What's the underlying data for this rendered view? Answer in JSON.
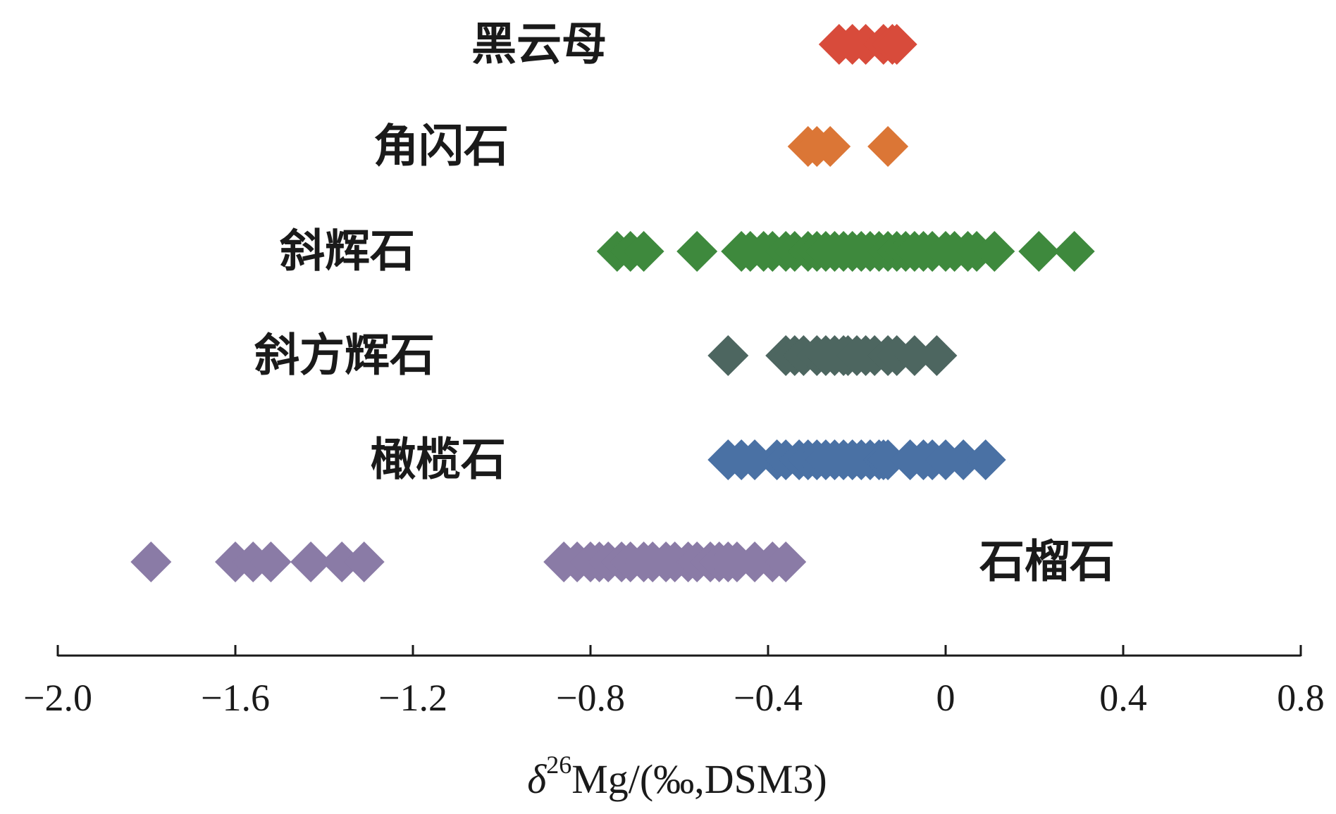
{
  "chart_data": {
    "type": "scatter",
    "marker": "diamond",
    "xlabel": {
      "symbol": "δ",
      "superscript": "26",
      "text": "Mg/(‰,DSM3)"
    },
    "ylabel": "",
    "xlim": [
      -2.0,
      0.8
    ],
    "grid": false,
    "legend": "none",
    "xticks": [
      {
        "value": -2.0,
        "label": "−2.0"
      },
      {
        "value": -1.6,
        "label": "−1.6"
      },
      {
        "value": -1.2,
        "label": "−1.2"
      },
      {
        "value": -0.8,
        "label": "−0.8"
      },
      {
        "value": -0.4,
        "label": "−0.4"
      },
      {
        "value": 0.0,
        "label": "0"
      },
      {
        "value": 0.4,
        "label": "0.4"
      },
      {
        "value": 0.8,
        "label": "0.8"
      }
    ],
    "series": [
      {
        "name": "黑云母",
        "color": "#d84b3b",
        "values": [
          -0.24,
          -0.21,
          -0.18,
          -0.14,
          -0.12,
          -0.11
        ]
      },
      {
        "name": "角闪石",
        "color": "#db7636",
        "values": [
          -0.31,
          -0.29,
          -0.26,
          -0.13
        ]
      },
      {
        "name": "斜辉石",
        "color": "#3e893d",
        "values": [
          -0.74,
          -0.71,
          -0.68,
          -0.56,
          -0.46,
          -0.44,
          -0.41,
          -0.39,
          -0.36,
          -0.34,
          -0.31,
          -0.29,
          -0.27,
          -0.25,
          -0.23,
          -0.21,
          -0.19,
          -0.17,
          -0.15,
          -0.13,
          -0.11,
          -0.09,
          -0.07,
          -0.05,
          -0.03,
          0.0,
          0.02,
          0.05,
          0.07,
          0.11,
          0.21,
          0.29
        ]
      },
      {
        "name": "斜方辉石",
        "color": "#4d6660",
        "values": [
          -0.49,
          -0.36,
          -0.34,
          -0.32,
          -0.29,
          -0.27,
          -0.25,
          -0.23,
          -0.22,
          -0.2,
          -0.18,
          -0.16,
          -0.13,
          -0.11,
          -0.07,
          -0.02
        ]
      },
      {
        "name": "橄榄石",
        "color": "#4a71a4",
        "values": [
          -0.49,
          -0.46,
          -0.43,
          -0.38,
          -0.36,
          -0.33,
          -0.31,
          -0.29,
          -0.27,
          -0.25,
          -0.23,
          -0.21,
          -0.19,
          -0.17,
          -0.15,
          -0.14,
          -0.13,
          -0.08,
          -0.05,
          -0.03,
          0.0,
          0.04,
          0.09
        ]
      },
      {
        "name": "石榴石",
        "color": "#8a7ba6",
        "values": [
          -1.79,
          -1.6,
          -1.56,
          -1.52,
          -1.43,
          -1.36,
          -1.31,
          -0.86,
          -0.83,
          -0.8,
          -0.78,
          -0.76,
          -0.73,
          -0.71,
          -0.68,
          -0.66,
          -0.63,
          -0.61,
          -0.58,
          -0.56,
          -0.53,
          -0.51,
          -0.49,
          -0.47,
          -0.43,
          -0.39,
          -0.36
        ]
      }
    ]
  }
}
